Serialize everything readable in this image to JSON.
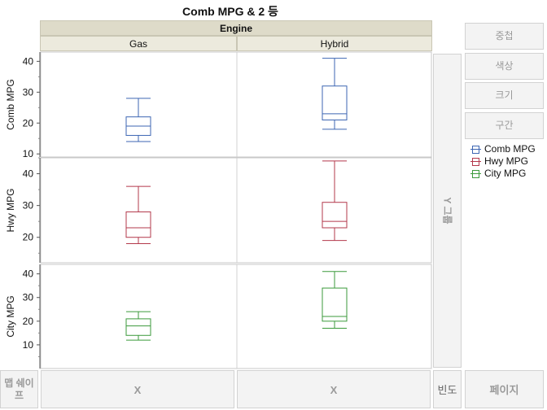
{
  "title": "Comb MPG & 2 등",
  "engine_header": "Engine",
  "columns": [
    "Gas",
    "Hybrid"
  ],
  "zones": {
    "overlay": "중첩",
    "color": "색상",
    "size": "크기",
    "interval": "구간",
    "group_y": "Y 그룹",
    "map_shape": "맵 쉐이프",
    "x_left": "X",
    "x_right": "X",
    "freq": "빈도",
    "page": "페이지"
  },
  "legend": [
    {
      "name": "Comb MPG",
      "color": "#3d66b3"
    },
    {
      "name": "Hwy MPG",
      "color": "#b3384b"
    },
    {
      "name": "City MPG",
      "color": "#3b9a3b"
    }
  ],
  "chart_data": {
    "type": "box",
    "categories": [
      "Gas",
      "Hybrid"
    ],
    "panels": [
      {
        "name": "Comb MPG",
        "color": "#3d66b3",
        "ylim": [
          9,
          43
        ],
        "yticks": [
          10,
          20,
          30,
          40
        ],
        "boxes": [
          {
            "category": "Gas",
            "min": 14,
            "q1": 16,
            "median": 19,
            "q3": 22,
            "max": 28
          },
          {
            "category": "Hybrid",
            "min": 18,
            "q1": 21,
            "median": 23,
            "q3": 32,
            "max": 41
          }
        ]
      },
      {
        "name": "Hwy MPG",
        "color": "#b3384b",
        "ylim": [
          12,
          45
        ],
        "yticks": [
          20,
          30,
          40
        ],
        "boxes": [
          {
            "category": "Gas",
            "min": 18,
            "q1": 20,
            "median": 23,
            "q3": 28,
            "max": 36
          },
          {
            "category": "Hybrid",
            "min": 19,
            "q1": 23,
            "median": 25,
            "q3": 31,
            "max": 44
          }
        ]
      },
      {
        "name": "City MPG",
        "color": "#3b9a3b",
        "ylim": [
          0,
          44
        ],
        "yticks": [
          10,
          20,
          30,
          40
        ],
        "boxes": [
          {
            "category": "Gas",
            "min": 12,
            "q1": 14,
            "median": 18,
            "q3": 21,
            "max": 24
          },
          {
            "category": "Hybrid",
            "min": 17,
            "q1": 20,
            "median": 22,
            "q3": 34,
            "max": 41
          }
        ]
      }
    ]
  }
}
